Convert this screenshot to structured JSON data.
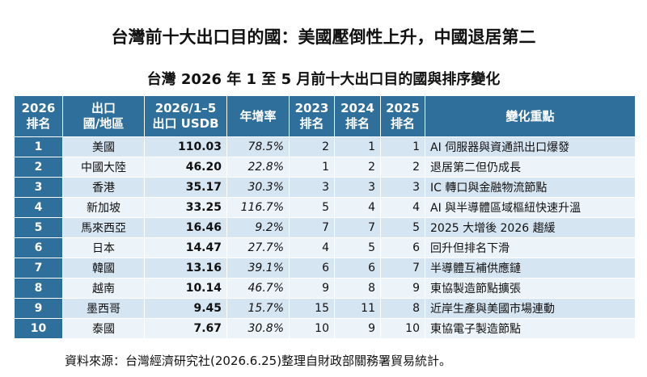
{
  "title": "台灣前十大出口目的國：美國壓倒性上升，中國退居第二",
  "subtitle": "台灣 2026 年 1 至 5 月前十大出口目的國與排序變化",
  "table": {
    "header": [
      [
        "2026",
        "排名"
      ],
      [
        "出口",
        "國/地區"
      ],
      [
        "2026/1–5",
        "出口 USDB"
      ],
      [
        "年增率"
      ],
      [
        "2023",
        "排名"
      ],
      [
        "2024",
        "排名"
      ],
      [
        "2025",
        "排名"
      ],
      [
        "變化重點"
      ]
    ],
    "rows": [
      [
        "1",
        "美國",
        "110.03",
        "78.5%",
        "2",
        "1",
        "1",
        "AI 伺服器與資通訊出口爆發"
      ],
      [
        "2",
        "中國大陸",
        "46.20",
        "22.8%",
        "1",
        "2",
        "2",
        "退居第二但仍成長"
      ],
      [
        "3",
        "香港",
        "35.17",
        "30.3%",
        "3",
        "3",
        "3",
        "IC 轉口與金融物流節點"
      ],
      [
        "4",
        "新加坡",
        "33.25",
        "116.7%",
        "5",
        "4",
        "4",
        "AI 與半導體區域樞紐快速升溫"
      ],
      [
        "5",
        "馬來西亞",
        "16.46",
        "9.2%",
        "7",
        "7",
        "5",
        "2025 大增後 2026 趨緩"
      ],
      [
        "6",
        "日本",
        "14.47",
        "27.7%",
        "4",
        "5",
        "6",
        "回升但排名下滑"
      ],
      [
        "7",
        "韓國",
        "13.16",
        "39.1%",
        "6",
        "6",
        "7",
        "半導體互補供應鏈"
      ],
      [
        "8",
        "越南",
        "10.14",
        "46.7%",
        "9",
        "8",
        "9",
        "東協製造節點擴張"
      ],
      [
        "9",
        "墨西哥",
        "9.45",
        "15.7%",
        "15",
        "11",
        "8",
        "近岸生產與美國市場連動"
      ],
      [
        "10",
        "泰國",
        "7.67",
        "30.8%",
        "10",
        "9",
        "10",
        "東協電子製造節點"
      ]
    ]
  },
  "source": "資料來源：台灣經濟研究社(2026.6.25)整理自財政部關務署貿易統計。"
}
